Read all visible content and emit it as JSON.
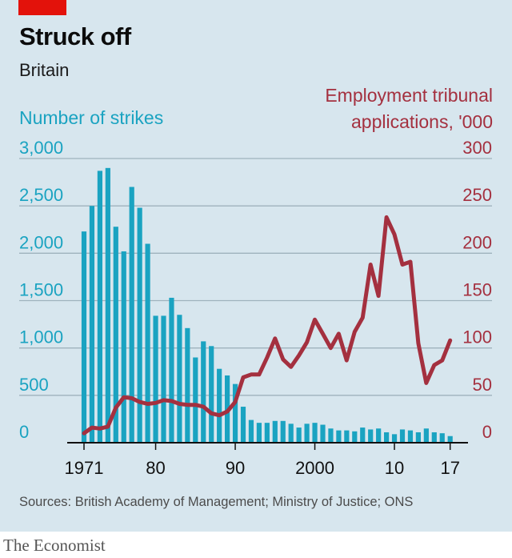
{
  "header": {
    "title": "Struck off",
    "subtitle": "Britain"
  },
  "footer": {
    "source": "Sources: British Academy of Management; Ministry of Justice; ONS",
    "brand": "The Economist"
  },
  "colors": {
    "background": "#d7e6ee",
    "accent_tag": "#e3120b",
    "strikes_bars": "#1aa3c1",
    "tribunal_line": "#a4303f",
    "grid": "#9fb2bd"
  },
  "chart_data": {
    "type": "bar",
    "title": "Struck off",
    "subtitle": "Britain",
    "x": [
      1971,
      1972,
      1973,
      1974,
      1975,
      1976,
      1977,
      1978,
      1979,
      1980,
      1981,
      1982,
      1983,
      1984,
      1985,
      1986,
      1987,
      1988,
      1989,
      1990,
      1991,
      1992,
      1993,
      1994,
      1995,
      1996,
      1997,
      1998,
      1999,
      2000,
      2001,
      2002,
      2003,
      2004,
      2005,
      2006,
      2007,
      2008,
      2009,
      2010,
      2011,
      2012,
      2013,
      2014,
      2015,
      2016,
      2017
    ],
    "x_tick_labels": [
      "1971",
      "80",
      "90",
      "2000",
      "10",
      "17"
    ],
    "x_tick_values": [
      1971,
      1980,
      1990,
      2000,
      2010,
      2017
    ],
    "ylabel": "Number of strikes",
    "y2label": "Employment tribunal applications, '000",
    "ylim": [
      0,
      3000
    ],
    "y2lim": [
      0,
      300
    ],
    "y_ticks": [
      "3,000",
      "2,500",
      "2,000",
      "1,500",
      "1,000",
      "500",
      "0"
    ],
    "y2_ticks": [
      "300",
      "250",
      "200",
      "150",
      "100",
      "50",
      "0"
    ],
    "grid": true,
    "series": [
      {
        "name": "Number of strikes",
        "type": "bar",
        "axis": "left",
        "values": [
          2230,
          2500,
          2870,
          2900,
          2280,
          2020,
          2700,
          2480,
          2100,
          1340,
          1340,
          1530,
          1350,
          1210,
          900,
          1070,
          1020,
          780,
          710,
          620,
          380,
          240,
          210,
          210,
          230,
          230,
          200,
          160,
          200,
          210,
          190,
          150,
          130,
          130,
          120,
          160,
          140,
          150,
          110,
          90,
          140,
          130,
          110,
          150,
          110,
          100,
          70
        ]
      },
      {
        "name": "Employment tribunal applications, '000",
        "type": "line",
        "axis": "right",
        "values": [
          10,
          16,
          15,
          17,
          37,
          48,
          47,
          43,
          41,
          42,
          45,
          44,
          41,
          40,
          40,
          38,
          31,
          29,
          33,
          43,
          69,
          72,
          72,
          90,
          110,
          88,
          80,
          92,
          106,
          130,
          115,
          100,
          115,
          87,
          117,
          132,
          188,
          155,
          238,
          220,
          188,
          191,
          105,
          63,
          82,
          87,
          108
        ]
      }
    ]
  }
}
